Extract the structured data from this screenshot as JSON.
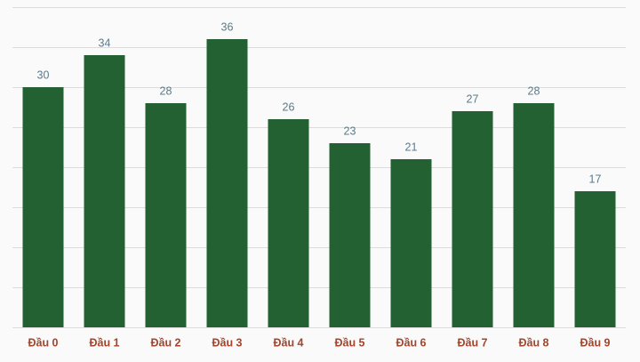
{
  "chart_data": {
    "type": "bar",
    "categories": [
      "Đầu 0",
      "Đầu 1",
      "Đầu 2",
      "Đầu 3",
      "Đầu 4",
      "Đầu 5",
      "Đầu 6",
      "Đầu 7",
      "Đầu 8",
      "Đầu 9"
    ],
    "values": [
      30,
      34,
      28,
      36,
      26,
      23,
      21,
      27,
      28,
      17
    ],
    "color": "#246132",
    "ylim": [
      0,
      40
    ],
    "yticks": [
      0,
      5,
      10,
      15,
      20,
      25,
      30,
      35,
      40
    ],
    "grid": true
  }
}
